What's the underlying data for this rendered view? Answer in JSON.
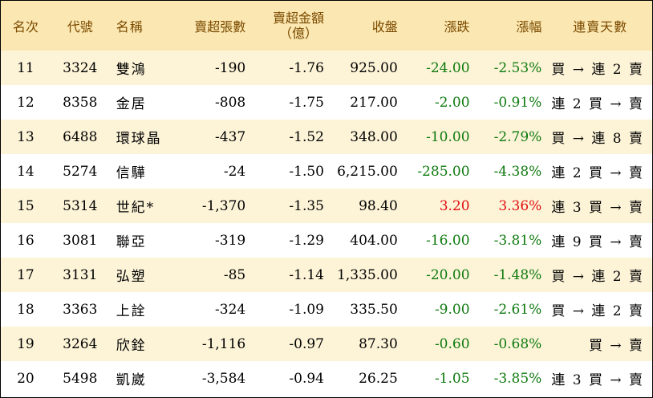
{
  "header": {
    "rank": "名次",
    "code": "代號",
    "name": "名稱",
    "net_sell_lots": "賣超張數",
    "net_sell_amount_line1": "賣超金額",
    "net_sell_amount_line2": "（億）",
    "close": "收盤",
    "change": "漲跌",
    "change_pct": "漲幅",
    "consecutive_days": "連賣天數"
  },
  "rows": [
    {
      "rank": "11",
      "code": "3324",
      "name": "雙鴻",
      "lots": "-190",
      "amount": "-1.76",
      "close": "925.00",
      "change": "-24.00",
      "pct": "-2.53%",
      "trend": "down",
      "days": "買 → 連 2 賣"
    },
    {
      "rank": "12",
      "code": "8358",
      "name": "金居",
      "lots": "-808",
      "amount": "-1.75",
      "close": "217.00",
      "change": "-2.00",
      "pct": "-0.91%",
      "trend": "down",
      "days": "連 2 買 → 賣"
    },
    {
      "rank": "13",
      "code": "6488",
      "name": "環球晶",
      "lots": "-437",
      "amount": "-1.52",
      "close": "348.00",
      "change": "-10.00",
      "pct": "-2.79%",
      "trend": "down",
      "days": "買 → 連 8 賣"
    },
    {
      "rank": "14",
      "code": "5274",
      "name": "信驊",
      "lots": "-24",
      "amount": "-1.50",
      "close": "6,215.00",
      "change": "-285.00",
      "pct": "-4.38%",
      "trend": "down",
      "days": "連 2 買 → 賣"
    },
    {
      "rank": "15",
      "code": "5314",
      "name": "世紀*",
      "lots": "-1,370",
      "amount": "-1.35",
      "close": "98.40",
      "change": "3.20",
      "pct": "3.36%",
      "trend": "up",
      "days": "連 3 買 → 賣"
    },
    {
      "rank": "16",
      "code": "3081",
      "name": "聯亞",
      "lots": "-319",
      "amount": "-1.29",
      "close": "404.00",
      "change": "-16.00",
      "pct": "-3.81%",
      "trend": "down",
      "days": "連 9 買 → 賣"
    },
    {
      "rank": "17",
      "code": "3131",
      "name": "弘塑",
      "lots": "-85",
      "amount": "-1.14",
      "close": "1,335.00",
      "change": "-20.00",
      "pct": "-1.48%",
      "trend": "down",
      "days": "買 → 連 2 賣"
    },
    {
      "rank": "18",
      "code": "3363",
      "name": "上詮",
      "lots": "-324",
      "amount": "-1.09",
      "close": "335.50",
      "change": "-9.00",
      "pct": "-2.61%",
      "trend": "down",
      "days": "買 → 連 2 賣"
    },
    {
      "rank": "19",
      "code": "3264",
      "name": "欣銓",
      "lots": "-1,116",
      "amount": "-0.97",
      "close": "87.30",
      "change": "-0.60",
      "pct": "-0.68%",
      "trend": "down",
      "days": "買 → 賣"
    },
    {
      "rank": "20",
      "code": "5498",
      "name": "凱崴",
      "lots": "-3,584",
      "amount": "-0.94",
      "close": "26.25",
      "change": "-1.05",
      "pct": "-3.85%",
      "trend": "down",
      "days": "連 3 買 → 賣"
    }
  ],
  "colors": {
    "header_bg": "#fbe7b1",
    "header_text": "#7a4a00",
    "odd_row_bg": "#fdf4d8",
    "down": "#0f7a0f",
    "up": "#e01010"
  }
}
